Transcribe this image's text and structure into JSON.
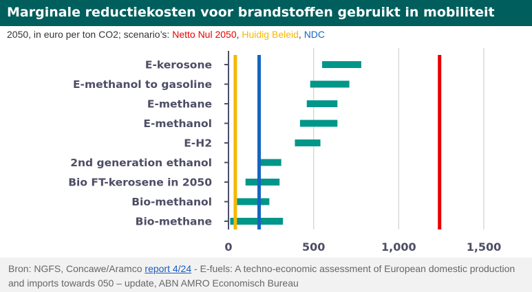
{
  "header": {
    "title": "Marginale reductiekosten voor brandstoffen gebruikt in mobiliteit"
  },
  "subtitle": {
    "prefix": "2050, in euro per ton CO2; scenario’s: ",
    "scenario_1": "Netto Nul 2050",
    "sep_1": ", ",
    "scenario_2": "Huidig Beleid",
    "sep_2": ", ",
    "scenario_3": "NDC"
  },
  "colors": {
    "header_bg": "#005e5d",
    "bar": "#00968a",
    "netto_nul": "#e60000",
    "huidig_beleid": "#f5b800",
    "ndc": "#1565c0",
    "axis": "#4d4d66",
    "grid": "#d9d9d9"
  },
  "chart_data": {
    "type": "floating-bar",
    "orientation": "horizontal",
    "categories": [
      "E-kerosone",
      "E-methanol to gasoline",
      "E-methane",
      "E-methanol",
      "E-H2",
      "2nd generation ethanol",
      "Bio FT-kerosene in 2050",
      "Bio-methanol",
      "Bio-methane"
    ],
    "ranges": [
      [
        550,
        780
      ],
      [
        480,
        710
      ],
      [
        460,
        640
      ],
      [
        420,
        640
      ],
      [
        390,
        540
      ],
      [
        170,
        310
      ],
      [
        100,
        300
      ],
      [
        50,
        240
      ],
      [
        10,
        320
      ]
    ],
    "reference_lines": [
      {
        "name": "Netto Nul 2050",
        "value": 1240,
        "color": "#e60000"
      },
      {
        "name": "Huidig Beleid",
        "value": 40,
        "color": "#f5b800"
      },
      {
        "name": "NDC",
        "value": 180,
        "color": "#1565c0"
      }
    ],
    "xlim": [
      0,
      1600
    ],
    "xticks": [
      0,
      500,
      1000,
      1500
    ],
    "xtick_labels": [
      "0",
      "500",
      "1,000",
      "1,500"
    ],
    "grid": "vertical"
  },
  "source": {
    "prefix": "Bron: NGFS, Concawe/Aramco ",
    "link": "report 4/24",
    "suffix": " -  E-fuels: A techno-economic assessment of European domestic production and imports towards 050 – update, ABN AMRO Economisch Bureau"
  }
}
